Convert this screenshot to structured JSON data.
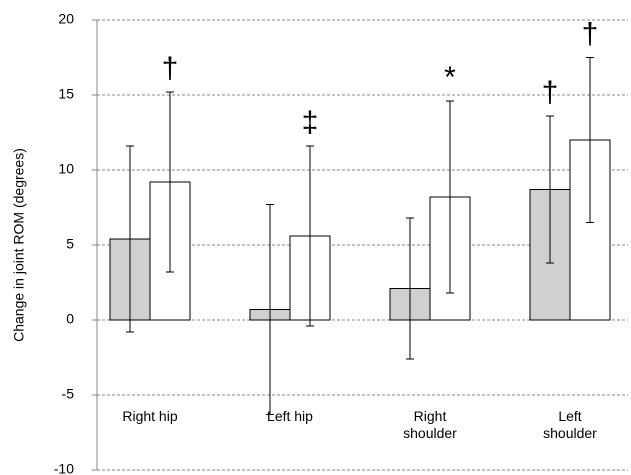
{
  "chart_data": {
    "type": "bar",
    "y_label": "Change in joint ROM (degrees)",
    "categories": [
      "Right hip",
      "Left hip",
      "Right shoulder",
      "Left shoulder"
    ],
    "series": [
      {
        "color": "#d0d0d0",
        "values": [
          5.4,
          0.7,
          2.1,
          8.7
        ],
        "errors": [
          6.2,
          7.0,
          4.7,
          4.9
        ],
        "annotations": [
          null,
          null,
          null,
          "†"
        ]
      },
      {
        "color": "#ffffff",
        "values": [
          9.2,
          5.6,
          8.2,
          12.0
        ],
        "errors": [
          6.0,
          6.0,
          6.4,
          5.5
        ],
        "annotations": [
          "†",
          "‡",
          "*",
          "†"
        ]
      }
    ],
    "ylim": [
      -10,
      20
    ],
    "yticks": [
      -10,
      -5,
      0,
      5,
      10,
      15,
      20
    ],
    "grid": true
  }
}
